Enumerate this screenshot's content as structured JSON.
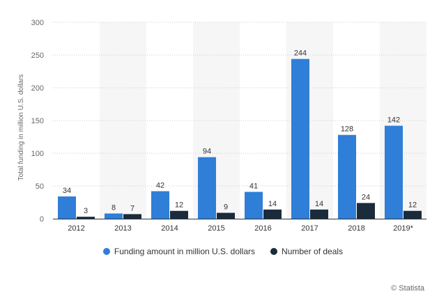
{
  "chart_data": {
    "type": "bar",
    "categories": [
      "2012",
      "2013",
      "2014",
      "2015",
      "2016",
      "2017",
      "2018",
      "2019*"
    ],
    "series": [
      {
        "name": "Funding amount in million U.S. dollars",
        "values": [
          34,
          8,
          42,
          94,
          41,
          244,
          128,
          142
        ],
        "color": "#2f7ed8"
      },
      {
        "name": "Number of deals",
        "values": [
          3,
          7,
          12,
          9,
          14,
          14,
          24,
          12
        ],
        "color": "#1a2b3c"
      }
    ],
    "ylabel": "Total funding in million U.S. dollars",
    "ylim": [
      0,
      300
    ],
    "yticks": [
      0,
      50,
      100,
      150,
      200,
      250,
      300
    ],
    "grid": true,
    "legend_position": "bottom-center",
    "data_labels": true
  },
  "credit": "© Statista"
}
